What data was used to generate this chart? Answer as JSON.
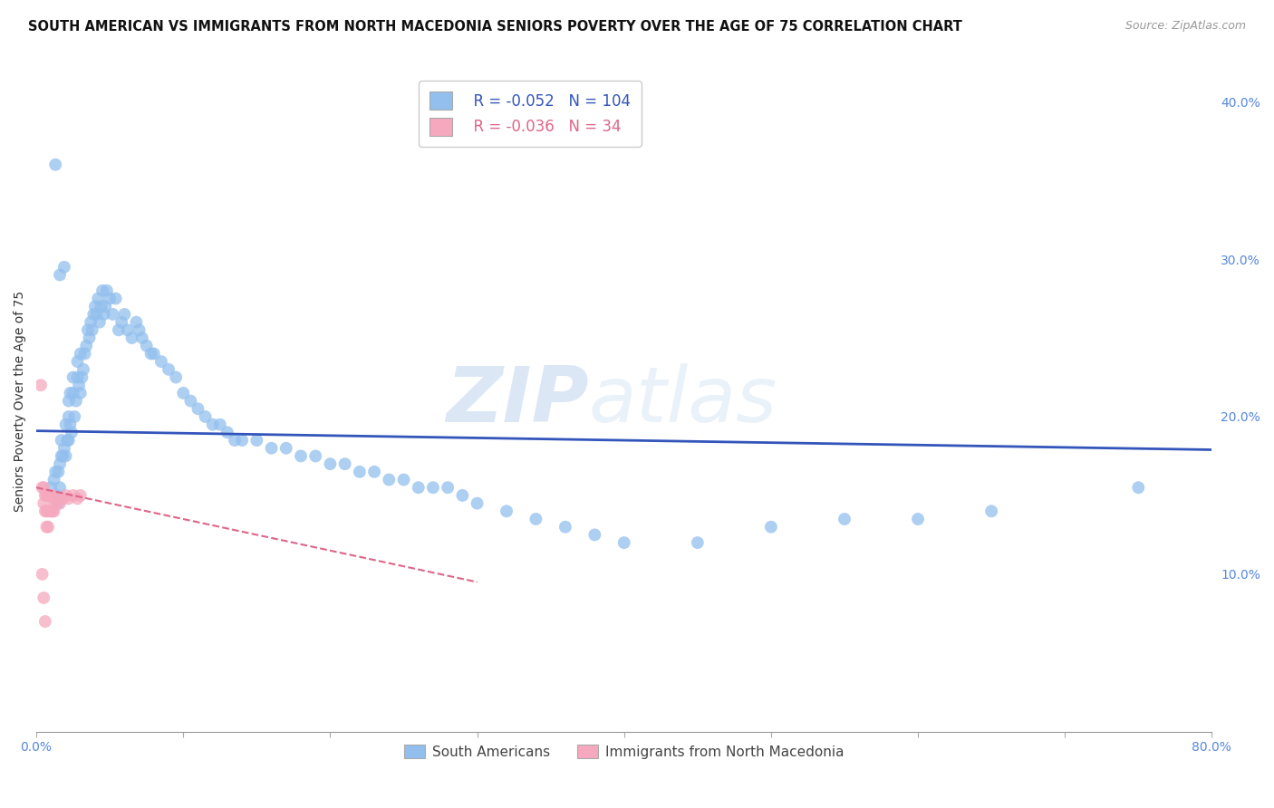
{
  "title": "SOUTH AMERICAN VS IMMIGRANTS FROM NORTH MACEDONIA SENIORS POVERTY OVER THE AGE OF 75 CORRELATION CHART",
  "source": "Source: ZipAtlas.com",
  "ylabel": "Seniors Poverty Over the Age of 75",
  "xlim": [
    0.0,
    0.8
  ],
  "ylim": [
    0.0,
    0.42
  ],
  "xticks": [
    0.0,
    0.1,
    0.2,
    0.3,
    0.4,
    0.5,
    0.6,
    0.7,
    0.8
  ],
  "xticklabels": [
    "0.0%",
    "",
    "",
    "",
    "",
    "",
    "",
    "",
    "80.0%"
  ],
  "yticks_right": [
    0.0,
    0.1,
    0.2,
    0.3,
    0.4
  ],
  "yticklabels_right": [
    "",
    "10.0%",
    "20.0%",
    "30.0%",
    "40.0%"
  ],
  "blue_scatter_x": [
    0.01,
    0.012,
    0.013,
    0.014,
    0.015,
    0.015,
    0.016,
    0.016,
    0.017,
    0.017,
    0.018,
    0.019,
    0.02,
    0.02,
    0.021,
    0.022,
    0.022,
    0.023,
    0.023,
    0.024,
    0.025,
    0.025,
    0.026,
    0.027,
    0.028,
    0.028,
    0.029,
    0.03,
    0.03,
    0.031,
    0.032,
    0.033,
    0.034,
    0.035,
    0.036,
    0.037,
    0.038,
    0.039,
    0.04,
    0.041,
    0.042,
    0.043,
    0.044,
    0.045,
    0.046,
    0.047,
    0.048,
    0.05,
    0.052,
    0.054,
    0.056,
    0.058,
    0.06,
    0.062,
    0.065,
    0.068,
    0.07,
    0.072,
    0.075,
    0.078,
    0.08,
    0.085,
    0.09,
    0.095,
    0.1,
    0.105,
    0.11,
    0.115,
    0.12,
    0.125,
    0.13,
    0.135,
    0.14,
    0.15,
    0.16,
    0.17,
    0.18,
    0.19,
    0.2,
    0.21,
    0.22,
    0.23,
    0.24,
    0.25,
    0.26,
    0.27,
    0.28,
    0.29,
    0.3,
    0.32,
    0.34,
    0.36,
    0.38,
    0.4,
    0.45,
    0.5,
    0.55,
    0.6,
    0.65,
    0.75,
    0.013,
    0.016,
    0.019,
    0.022
  ],
  "blue_scatter_y": [
    0.155,
    0.16,
    0.165,
    0.15,
    0.145,
    0.165,
    0.155,
    0.17,
    0.175,
    0.185,
    0.175,
    0.18,
    0.175,
    0.195,
    0.185,
    0.185,
    0.2,
    0.195,
    0.215,
    0.19,
    0.215,
    0.225,
    0.2,
    0.21,
    0.225,
    0.235,
    0.22,
    0.215,
    0.24,
    0.225,
    0.23,
    0.24,
    0.245,
    0.255,
    0.25,
    0.26,
    0.255,
    0.265,
    0.27,
    0.265,
    0.275,
    0.26,
    0.27,
    0.28,
    0.265,
    0.27,
    0.28,
    0.275,
    0.265,
    0.275,
    0.255,
    0.26,
    0.265,
    0.255,
    0.25,
    0.26,
    0.255,
    0.25,
    0.245,
    0.24,
    0.24,
    0.235,
    0.23,
    0.225,
    0.215,
    0.21,
    0.205,
    0.2,
    0.195,
    0.195,
    0.19,
    0.185,
    0.185,
    0.185,
    0.18,
    0.18,
    0.175,
    0.175,
    0.17,
    0.17,
    0.165,
    0.165,
    0.16,
    0.16,
    0.155,
    0.155,
    0.155,
    0.15,
    0.145,
    0.14,
    0.135,
    0.13,
    0.125,
    0.12,
    0.12,
    0.13,
    0.135,
    0.135,
    0.14,
    0.155,
    0.36,
    0.29,
    0.295,
    0.21
  ],
  "pink_scatter_x": [
    0.003,
    0.004,
    0.004,
    0.005,
    0.005,
    0.005,
    0.006,
    0.006,
    0.006,
    0.007,
    0.007,
    0.007,
    0.008,
    0.008,
    0.008,
    0.009,
    0.009,
    0.01,
    0.01,
    0.011,
    0.011,
    0.012,
    0.012,
    0.013,
    0.014,
    0.015,
    0.016,
    0.017,
    0.018,
    0.02,
    0.022,
    0.025,
    0.028,
    0.03
  ],
  "pink_scatter_y": [
    0.22,
    0.155,
    0.1,
    0.155,
    0.145,
    0.085,
    0.15,
    0.14,
    0.07,
    0.15,
    0.14,
    0.13,
    0.15,
    0.14,
    0.13,
    0.15,
    0.14,
    0.15,
    0.14,
    0.15,
    0.14,
    0.148,
    0.14,
    0.145,
    0.148,
    0.148,
    0.145,
    0.148,
    0.148,
    0.15,
    0.148,
    0.15,
    0.148,
    0.15
  ],
  "blue_line_x": [
    0.0,
    0.8
  ],
  "blue_line_y": [
    0.191,
    0.179
  ],
  "pink_line_x": [
    0.0,
    0.3
  ],
  "pink_line_y": [
    0.155,
    0.095
  ],
  "blue_color": "#92bfed",
  "pink_color": "#f5a8be",
  "blue_line_color": "#3355bb",
  "pink_line_color": "#dd6688",
  "legend_r_blue": "-0.052",
  "legend_n_blue": "104",
  "legend_r_pink": "-0.036",
  "legend_n_pink": "34",
  "legend_label_blue": "South Americans",
  "legend_label_pink": "Immigrants from North Macedonia",
  "watermark_zip": "ZIP",
  "watermark_atlas": "atlas",
  "grid_color": "#cccccc",
  "title_fontsize": 10.5,
  "axis_label_fontsize": 10,
  "tick_fontsize": 10,
  "right_tick_color": "#5588dd",
  "bottom_tick_color": "#5588dd"
}
